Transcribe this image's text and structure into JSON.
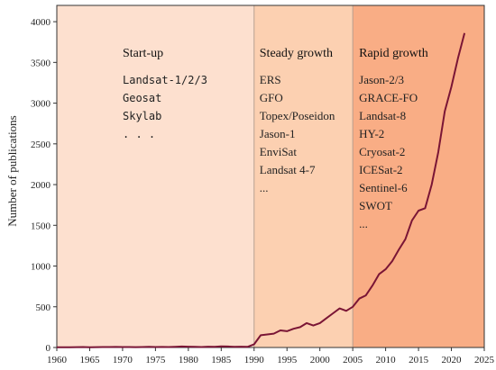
{
  "chart_data": {
    "type": "line",
    "title": "",
    "xlabel": "",
    "ylabel": "Number of publications",
    "xlim": [
      1960,
      2025
    ],
    "ylim": [
      0,
      4200
    ],
    "xticks": [
      1960,
      1965,
      1970,
      1975,
      1980,
      1985,
      1990,
      1995,
      2000,
      2005,
      2010,
      2015,
      2020,
      2025
    ],
    "yticks": [
      0,
      500,
      1000,
      1500,
      2000,
      2500,
      3000,
      3500,
      4000
    ],
    "grid": false,
    "line_color": "#7a1535",
    "regions": [
      {
        "name": "start-up",
        "title": "Start-up",
        "from": 1960,
        "to": 1990,
        "color": "#fde0cf",
        "mono": true,
        "items": [
          "Landsat-1/2/3",
          "Geosat",
          "Skylab",
          ". . ."
        ]
      },
      {
        "name": "steady-growth",
        "title": "Steady growth",
        "from": 1990,
        "to": 2005,
        "color": "#fcd0b1",
        "mono": false,
        "items": [
          "ERS",
          "GFO",
          "Topex/Poseidon",
          "Jason-1",
          "EnviSat",
          "Landsat 4-7",
          "..."
        ]
      },
      {
        "name": "rapid-growth",
        "title": "Rapid growth",
        "from": 2005,
        "to": 2025,
        "color": "#f9ad85",
        "mono": false,
        "items": [
          "Jason-2/3",
          "GRACE-FO",
          "Landsat-8",
          "HY-2",
          "Cryosat-2",
          "ICESat-2",
          "Sentinel-6",
          "SWOT",
          "..."
        ]
      }
    ],
    "series": [
      {
        "x": [
          1960,
          1961,
          1962,
          1963,
          1964,
          1965,
          1966,
          1967,
          1968,
          1969,
          1970,
          1971,
          1972,
          1973,
          1974,
          1975,
          1976,
          1977,
          1978,
          1979,
          1980,
          1981,
          1982,
          1983,
          1984,
          1985,
          1986,
          1987,
          1988,
          1989,
          1990,
          1991,
          1992,
          1993,
          1994,
          1995,
          1996,
          1997,
          1998,
          1999,
          2000,
          2001,
          2002,
          2003,
          2004,
          2005,
          2006,
          2007,
          2008,
          2009,
          2010,
          2011,
          2012,
          2013,
          2014,
          2015,
          2016,
          2017,
          2018,
          2019,
          2020,
          2021,
          2022
        ],
        "y": [
          3,
          3,
          2,
          4,
          5,
          3,
          4,
          6,
          5,
          7,
          5,
          6,
          4,
          6,
          8,
          5,
          7,
          6,
          9,
          12,
          10,
          8,
          6,
          10,
          8,
          14,
          12,
          9,
          10,
          8,
          40,
          150,
          160,
          170,
          210,
          200,
          230,
          250,
          300,
          270,
          300,
          360,
          420,
          480,
          450,
          500,
          600,
          640,
          760,
          900,
          960,
          1060,
          1200,
          1330,
          1560,
          1680,
          1710,
          2000,
          2400,
          2900,
          3200,
          3550,
          3860
        ]
      }
    ]
  }
}
